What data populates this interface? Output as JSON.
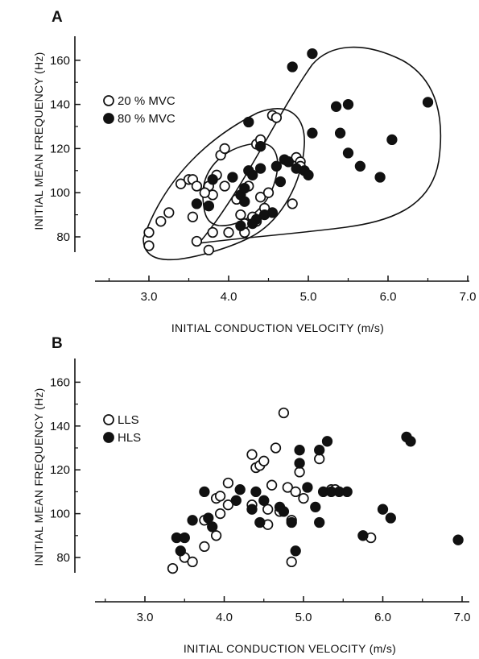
{
  "chart_data": [
    {
      "panel": "A",
      "type": "scatter",
      "xlabel": "INITIAL CONDUCTION VELOCITY (m/s)",
      "ylabel": "INITIAL MEAN FREQUENCY (Hz)",
      "xlim": [
        2.35,
        7.0
      ],
      "ylim": [
        70,
        168
      ],
      "xticks": [
        "3.0",
        "4.0",
        "5.0",
        "6.0",
        "7.0"
      ],
      "yticks": [
        "80",
        "100",
        "120",
        "140",
        "160"
      ],
      "legend_position": "upper-left",
      "series": [
        {
          "name": "20 % MVC",
          "marker": "open-circle",
          "points": [
            [
              3.0,
              82
            ],
            [
              3.0,
              76
            ],
            [
              3.15,
              87
            ],
            [
              3.25,
              91
            ],
            [
              3.4,
              104
            ],
            [
              3.5,
              106
            ],
            [
              3.55,
              106
            ],
            [
              3.6,
              103
            ],
            [
              3.55,
              89
            ],
            [
              3.6,
              78
            ],
            [
              3.75,
              74
            ],
            [
              3.8,
              82
            ],
            [
              3.75,
              94
            ],
            [
              3.8,
              99
            ],
            [
              3.75,
              103
            ],
            [
              3.85,
              108
            ],
            [
              3.9,
              117
            ],
            [
              3.95,
              120
            ],
            [
              3.7,
              100
            ],
            [
              3.95,
              103
            ],
            [
              4.0,
              82
            ],
            [
              4.15,
              90
            ],
            [
              4.2,
              82
            ],
            [
              4.25,
              103
            ],
            [
              4.3,
              89
            ],
            [
              4.35,
              87
            ],
            [
              4.35,
              122
            ],
            [
              4.4,
              124
            ],
            [
              4.4,
              98
            ],
            [
              4.5,
              100
            ],
            [
              4.55,
              135
            ],
            [
              4.6,
              134
            ],
            [
              4.75,
              114
            ],
            [
              4.8,
              95
            ],
            [
              4.85,
              116
            ],
            [
              4.9,
              114
            ],
            [
              4.9,
              112
            ],
            [
              4.2,
              86
            ],
            [
              4.1,
              97
            ],
            [
              4.45,
              93
            ]
          ]
        },
        {
          "name": "80 % MVC",
          "marker": "filled-circle",
          "points": [
            [
              3.6,
              95
            ],
            [
              3.75,
              94
            ],
            [
              3.8,
              106
            ],
            [
              4.05,
              107
            ],
            [
              4.15,
              99
            ],
            [
              4.2,
              96
            ],
            [
              4.15,
              85
            ],
            [
              4.25,
              132
            ],
            [
              4.25,
              110
            ],
            [
              4.3,
              108
            ],
            [
              4.35,
              88
            ],
            [
              4.4,
              121
            ],
            [
              4.4,
              111
            ],
            [
              4.45,
              90
            ],
            [
              4.55,
              91
            ],
            [
              4.6,
              112
            ],
            [
              4.65,
              105
            ],
            [
              4.7,
              115
            ],
            [
              4.75,
              114
            ],
            [
              4.8,
              157
            ],
            [
              4.85,
              111
            ],
            [
              4.95,
              110
            ],
            [
              5.0,
              108
            ],
            [
              5.05,
              163
            ],
            [
              5.05,
              127
            ],
            [
              5.35,
              139
            ],
            [
              5.4,
              127
            ],
            [
              5.5,
              140
            ],
            [
              5.5,
              118
            ],
            [
              5.65,
              112
            ],
            [
              5.9,
              107
            ],
            [
              6.05,
              124
            ],
            [
              6.5,
              141
            ],
            [
              4.2,
              102
            ],
            [
              4.3,
              86
            ]
          ]
        }
      ]
    },
    {
      "panel": "B",
      "type": "scatter",
      "xlabel": "INITIAL CONDUCTION VELOCITY (m/s)",
      "ylabel": "INITIAL MEAN FREQUENCY (Hz)",
      "xlim": [
        2.35,
        7.0
      ],
      "ylim": [
        70,
        168
      ],
      "xticks": [
        "3.0",
        "4.0",
        "5.0",
        "6.0",
        "7.0"
      ],
      "yticks": [
        "80",
        "100",
        "120",
        "140",
        "160"
      ],
      "legend_position": "upper-left",
      "series": [
        {
          "name": "LLS",
          "marker": "open-circle",
          "points": [
            [
              3.35,
              75
            ],
            [
              3.5,
              80
            ],
            [
              3.6,
              78
            ],
            [
              3.75,
              85
            ],
            [
              3.75,
              97
            ],
            [
              3.9,
              90
            ],
            [
              3.9,
              107
            ],
            [
              3.95,
              108
            ],
            [
              3.95,
              100
            ],
            [
              4.05,
              104
            ],
            [
              4.05,
              114
            ],
            [
              4.35,
              127
            ],
            [
              4.4,
              121
            ],
            [
              4.45,
              122
            ],
            [
              4.5,
              124
            ],
            [
              4.55,
              102
            ],
            [
              4.55,
              95
            ],
            [
              4.6,
              113
            ],
            [
              4.65,
              130
            ],
            [
              4.7,
              101
            ],
            [
              4.75,
              146
            ],
            [
              4.8,
              112
            ],
            [
              4.85,
              78
            ],
            [
              4.85,
              97
            ],
            [
              4.9,
              110
            ],
            [
              4.95,
              119
            ],
            [
              5.0,
              107
            ],
            [
              5.2,
              125
            ],
            [
              5.35,
              111
            ],
            [
              5.4,
              111
            ],
            [
              5.85,
              89
            ],
            [
              4.35,
              104
            ]
          ]
        },
        {
          "name": "HLS",
          "marker": "filled-circle",
          "points": [
            [
              3.4,
              89
            ],
            [
              3.45,
              83
            ],
            [
              3.5,
              89
            ],
            [
              3.6,
              97
            ],
            [
              3.75,
              110
            ],
            [
              3.8,
              98
            ],
            [
              3.85,
              94
            ],
            [
              4.15,
              106
            ],
            [
              4.2,
              111
            ],
            [
              4.35,
              102
            ],
            [
              4.45,
              96
            ],
            [
              4.5,
              106
            ],
            [
              4.7,
              103
            ],
            [
              4.75,
              101
            ],
            [
              4.85,
              96
            ],
            [
              4.9,
              83
            ],
            [
              4.95,
              129
            ],
            [
              4.95,
              123
            ],
            [
              5.05,
              112
            ],
            [
              5.15,
              103
            ],
            [
              5.2,
              96
            ],
            [
              5.2,
              129
            ],
            [
              5.25,
              110
            ],
            [
              5.35,
              110
            ],
            [
              5.3,
              133
            ],
            [
              5.45,
              110
            ],
            [
              5.55,
              110
            ],
            [
              5.75,
              90
            ],
            [
              6.0,
              102
            ],
            [
              6.1,
              98
            ],
            [
              6.3,
              135
            ],
            [
              6.35,
              133
            ],
            [
              6.95,
              88
            ],
            [
              4.4,
              110
            ]
          ]
        }
      ]
    }
  ]
}
